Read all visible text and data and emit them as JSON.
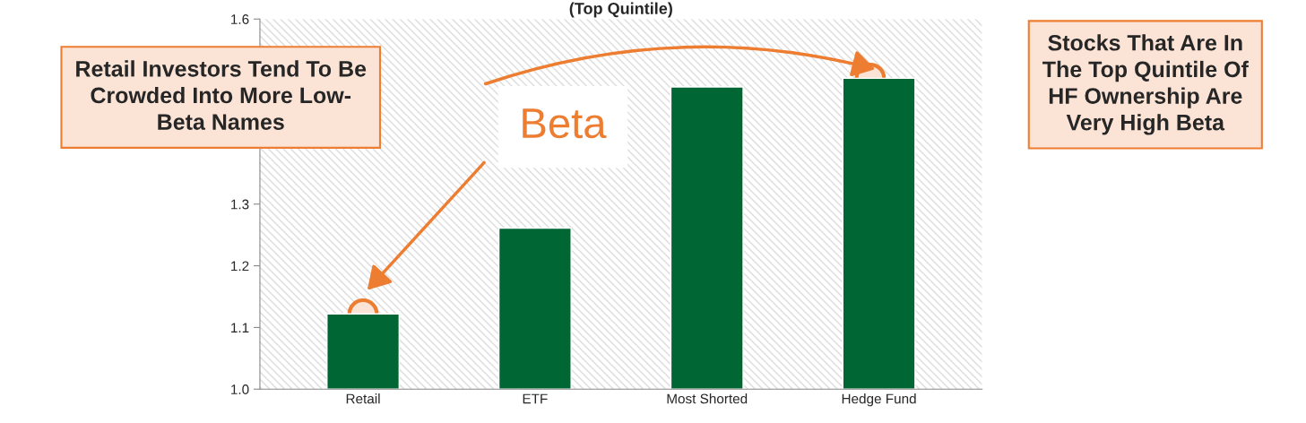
{
  "chart_data": {
    "type": "bar",
    "title": "(Top Quintile)",
    "categories": [
      "Retail",
      "ETF",
      "Most Shorted",
      "Hedge Fund"
    ],
    "values": [
      1.122,
      1.261,
      1.49,
      1.504
    ],
    "color": "#006633",
    "ylim": [
      1.0,
      1.6
    ],
    "yticks": [
      {
        "value": 1.0,
        "label": "1.0"
      },
      1.1,
      1.2,
      1.3,
      {
        "value": 1.4,
        "label": null
      },
      {
        "value": 1.5,
        "label": null
      },
      1.6
    ],
    "grid": false,
    "legend": false,
    "annotations": [
      "Retail Investors Tend To Be\nCrowded Into More Low-\nBeta Names",
      "Beta",
      "Stocks That Are In\nThe Top Quintile Of\nHF Ownership Are\nVery High Beta"
    ]
  }
}
